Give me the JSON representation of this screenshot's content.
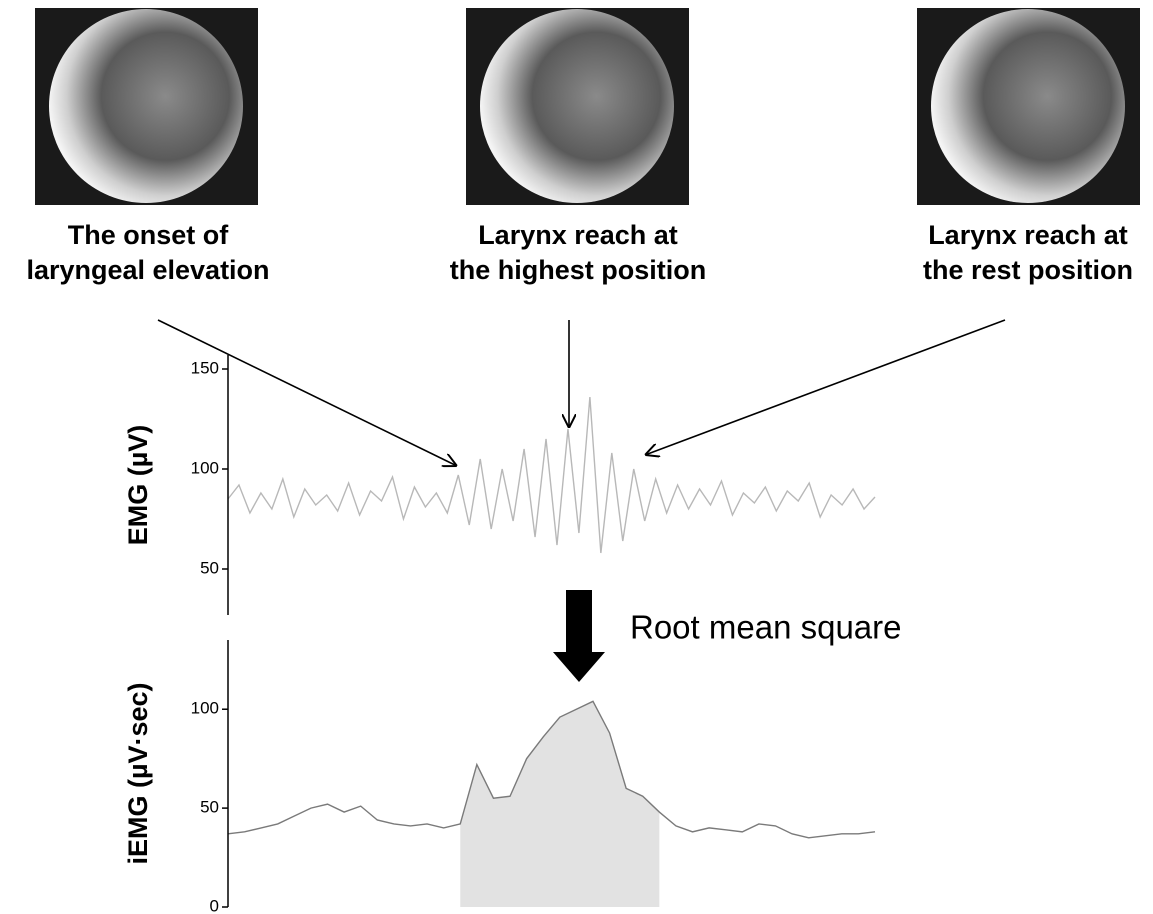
{
  "captions": [
    [
      "The onset of",
      "laryngeal elevation"
    ],
    [
      "Larynx reach at",
      "the highest position"
    ],
    [
      "Larynx reach at",
      "the rest position"
    ]
  ],
  "transform_label": "Root mean square",
  "chart_data": [
    {
      "type": "line",
      "ylabel": "EMG (µV)",
      "ylim": [
        27,
        157
      ],
      "yticks": [
        50,
        100,
        150
      ],
      "series": [
        {
          "color": "#b8b8b8",
          "values": [
            85,
            92,
            78,
            88,
            80,
            95,
            76,
            90,
            82,
            87,
            79,
            93,
            77,
            89,
            84,
            96,
            75,
            91,
            81,
            88,
            78,
            97,
            72,
            105,
            70,
            100,
            74,
            110,
            66,
            115,
            62,
            120,
            68,
            136,
            58,
            108,
            64,
            100,
            74,
            95,
            78,
            92,
            80,
            90,
            82,
            94,
            77,
            88,
            83,
            91,
            79,
            89,
            84,
            93,
            76,
            87,
            82,
            90,
            80,
            86
          ]
        }
      ]
    },
    {
      "type": "area",
      "ylabel": "iEMG (µV·sec)",
      "ylim": [
        0,
        135
      ],
      "yticks": [
        0,
        50,
        100
      ],
      "shaded_span": [
        14,
        26
      ],
      "fill": "#e2e2e2",
      "series": [
        {
          "color": "#7a7a7a",
          "values": [
            37,
            38,
            40,
            42,
            46,
            50,
            52,
            48,
            51,
            44,
            42,
            41,
            42,
            40,
            42,
            72,
            55,
            56,
            75,
            86,
            96,
            100,
            104,
            88,
            60,
            56,
            48,
            41,
            38,
            40,
            39,
            38,
            42,
            41,
            37,
            35,
            36,
            37,
            37,
            38
          ]
        }
      ]
    }
  ]
}
